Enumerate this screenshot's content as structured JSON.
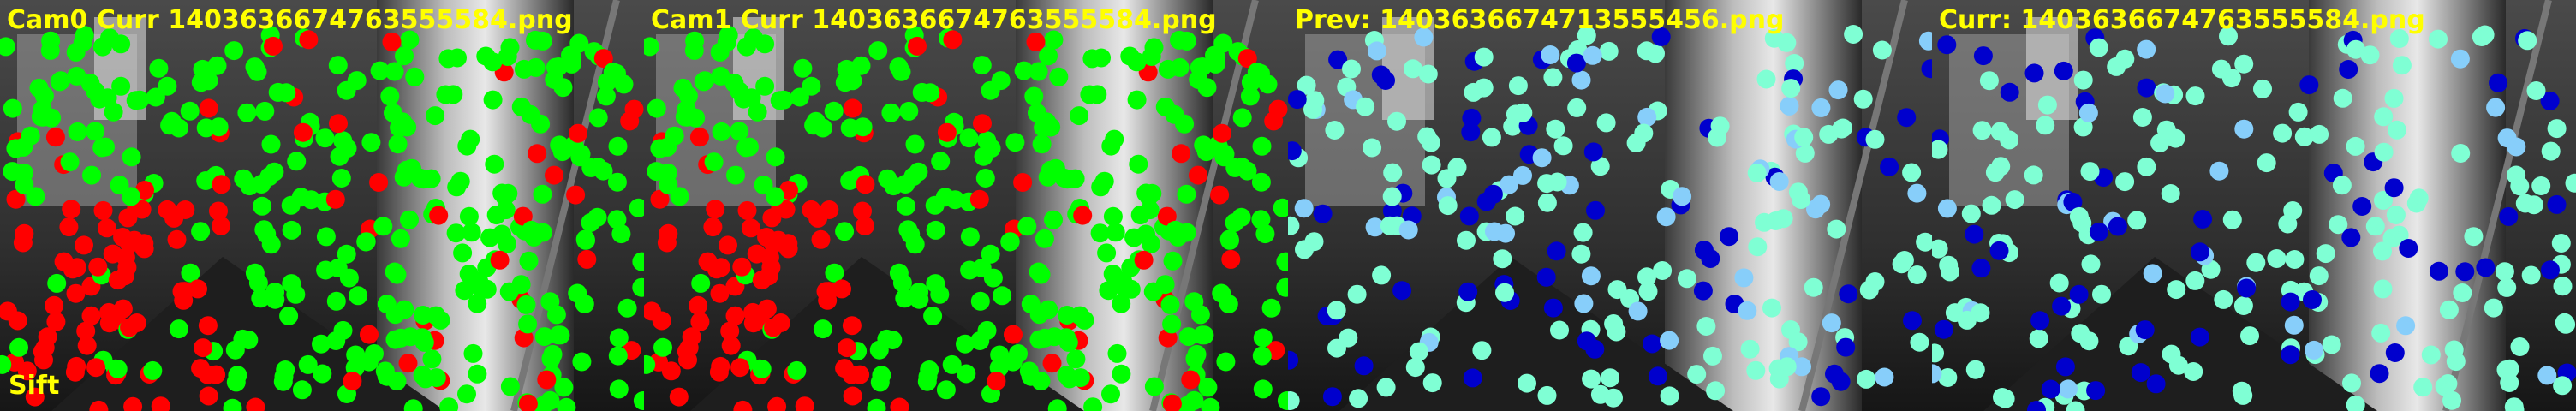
{
  "viewer": {
    "detector_label": "Sift",
    "colors": {
      "label": "#ffff00",
      "stereo_inlier": "#00ff00",
      "stereo_outlier": "#ff0000",
      "track_young": "#7fffd4",
      "track_mid": "#87cefa",
      "track_old": "#0000cd"
    },
    "panels": [
      {
        "title": "Cam0 Curr 1403636674763555584.png",
        "style": "stereo"
      },
      {
        "title": "Cam1 Curr 1403636674763555584.png",
        "style": "stereo"
      },
      {
        "title": "Prev: 1403636674713555456.png",
        "style": "track"
      },
      {
        "title": "Curr: 1403636674763555584.png",
        "style": "track"
      }
    ]
  }
}
